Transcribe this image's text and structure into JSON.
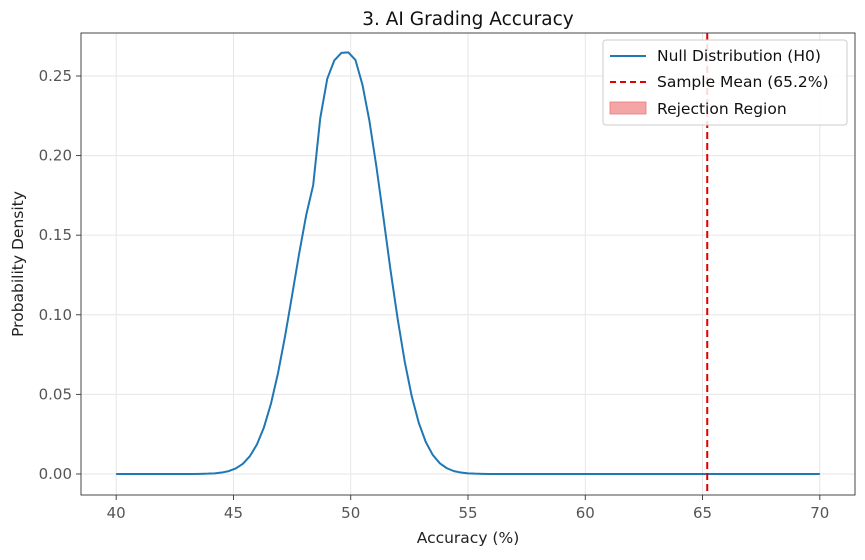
{
  "chart_data": {
    "type": "line",
    "title": "3. AI Grading Accuracy",
    "xlabel": "Accuracy (%)",
    "ylabel": "Probability Density",
    "xlim": [
      38.5,
      71.5
    ],
    "ylim": [
      -0.0132,
      0.277
    ],
    "xticks": [
      40,
      45,
      50,
      55,
      60,
      65,
      70
    ],
    "xtick_labels": [
      "40",
      "45",
      "50",
      "55",
      "60",
      "65",
      "70"
    ],
    "yticks": [
      0.0,
      0.05,
      0.1,
      0.15,
      0.2,
      0.25
    ],
    "ytick_labels": [
      "0.00",
      "0.05",
      "0.10",
      "0.15",
      "0.20",
      "0.25"
    ],
    "grid": true,
    "legend_position": "top-right",
    "series": [
      {
        "name": "Null Distribution (H0)",
        "color": "#1f77b4",
        "style": "solid",
        "x": [
          40.0,
          40.3,
          40.6,
          40.9,
          41.2,
          41.5,
          41.8,
          42.1,
          42.4,
          42.7,
          43.0,
          43.3,
          43.6,
          43.9,
          44.2,
          44.5,
          44.8,
          45.1,
          45.4,
          45.7,
          46.0,
          46.3,
          46.6,
          46.9,
          47.2,
          47.5,
          47.8,
          48.1,
          48.4,
          48.7,
          49.0,
          49.3,
          49.6,
          49.9,
          50.2,
          50.5,
          50.8,
          51.1,
          51.4,
          51.7,
          52.0,
          52.3,
          52.6,
          52.9,
          53.2,
          53.5,
          53.8,
          54.1,
          54.4,
          54.7,
          55.0,
          55.3,
          55.6,
          55.9,
          56.2,
          56.5,
          56.8,
          57.1,
          57.4,
          57.7,
          58.0,
          58.3,
          58.6,
          58.9,
          59.2,
          59.5,
          59.8,
          60.1,
          60.4,
          60.7,
          61.0,
          61.3,
          61.6,
          61.9,
          62.2,
          62.5,
          62.8,
          63.1,
          63.4,
          63.7,
          64.0,
          64.3,
          64.6,
          64.9,
          65.2,
          65.5,
          65.8,
          66.1,
          66.4,
          66.7,
          67.0,
          67.3,
          67.6,
          67.9,
          68.2,
          68.5,
          68.8,
          69.1,
          69.4,
          69.7,
          70.0
        ],
        "y": [
          0.0,
          0.0,
          0.0,
          0.0,
          0.0,
          0.0,
          0.0,
          0.0,
          0.0,
          0.0,
          0.0,
          0.0,
          0.0001,
          0.0002,
          0.0004,
          0.0009,
          0.0018,
          0.0035,
          0.0064,
          0.0112,
          0.0185,
          0.0293,
          0.0442,
          0.0634,
          0.0865,
          0.1122,
          0.1384,
          0.1625,
          0.1815,
          0.2235,
          0.2483,
          0.2598,
          0.2645,
          0.2648,
          0.2601,
          0.2445,
          0.2215,
          0.1925,
          0.1605,
          0.1277,
          0.0975,
          0.0708,
          0.0489,
          0.0322,
          0.0201,
          0.0119,
          0.0067,
          0.0036,
          0.0018,
          0.0009,
          0.0004,
          0.0002,
          0.0001,
          0.0,
          0.0,
          0.0,
          0.0,
          0.0,
          0.0,
          0.0,
          0.0,
          0.0,
          0.0,
          0.0,
          0.0,
          0.0,
          0.0,
          0.0,
          0.0,
          0.0,
          0.0,
          0.0,
          0.0,
          0.0,
          0.0,
          0.0,
          0.0,
          0.0,
          0.0,
          0.0,
          0.0,
          0.0,
          0.0,
          0.0,
          0.0,
          0.0,
          0.0,
          0.0,
          0.0,
          0.0,
          0.0,
          0.0,
          0.0,
          0.0,
          0.0,
          0.0,
          0.0,
          0.0,
          0.0,
          0.0,
          0.0
        ]
      }
    ],
    "vline": {
      "name": "Sample Mean (65.2%)",
      "x": 65.2,
      "color": "#e00000",
      "style": "dashed"
    },
    "region": {
      "name": "Rejection Region",
      "color": "#f4a6a6"
    }
  }
}
